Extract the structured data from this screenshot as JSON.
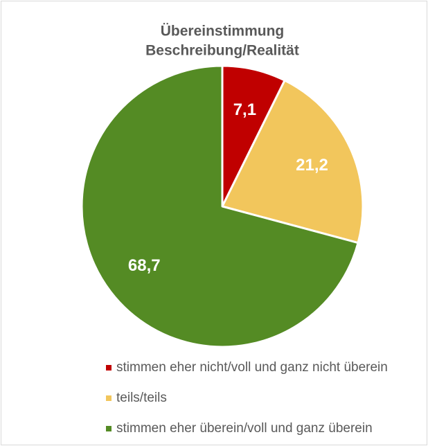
{
  "chart_data": {
    "type": "pie",
    "title": [
      "Übereinstimmung",
      "Beschreibung/Realität"
    ],
    "categories": [
      "stimmen eher nicht/voll und ganz nicht überein",
      "teils/teils",
      "stimmen eher überein/voll und ganz überein"
    ],
    "values": [
      7.1,
      21.2,
      68.7
    ],
    "value_labels": [
      "7,1",
      "21,2",
      "68,7"
    ],
    "colors": [
      "#c00000",
      "#f2c65c",
      "#548b24"
    ]
  }
}
